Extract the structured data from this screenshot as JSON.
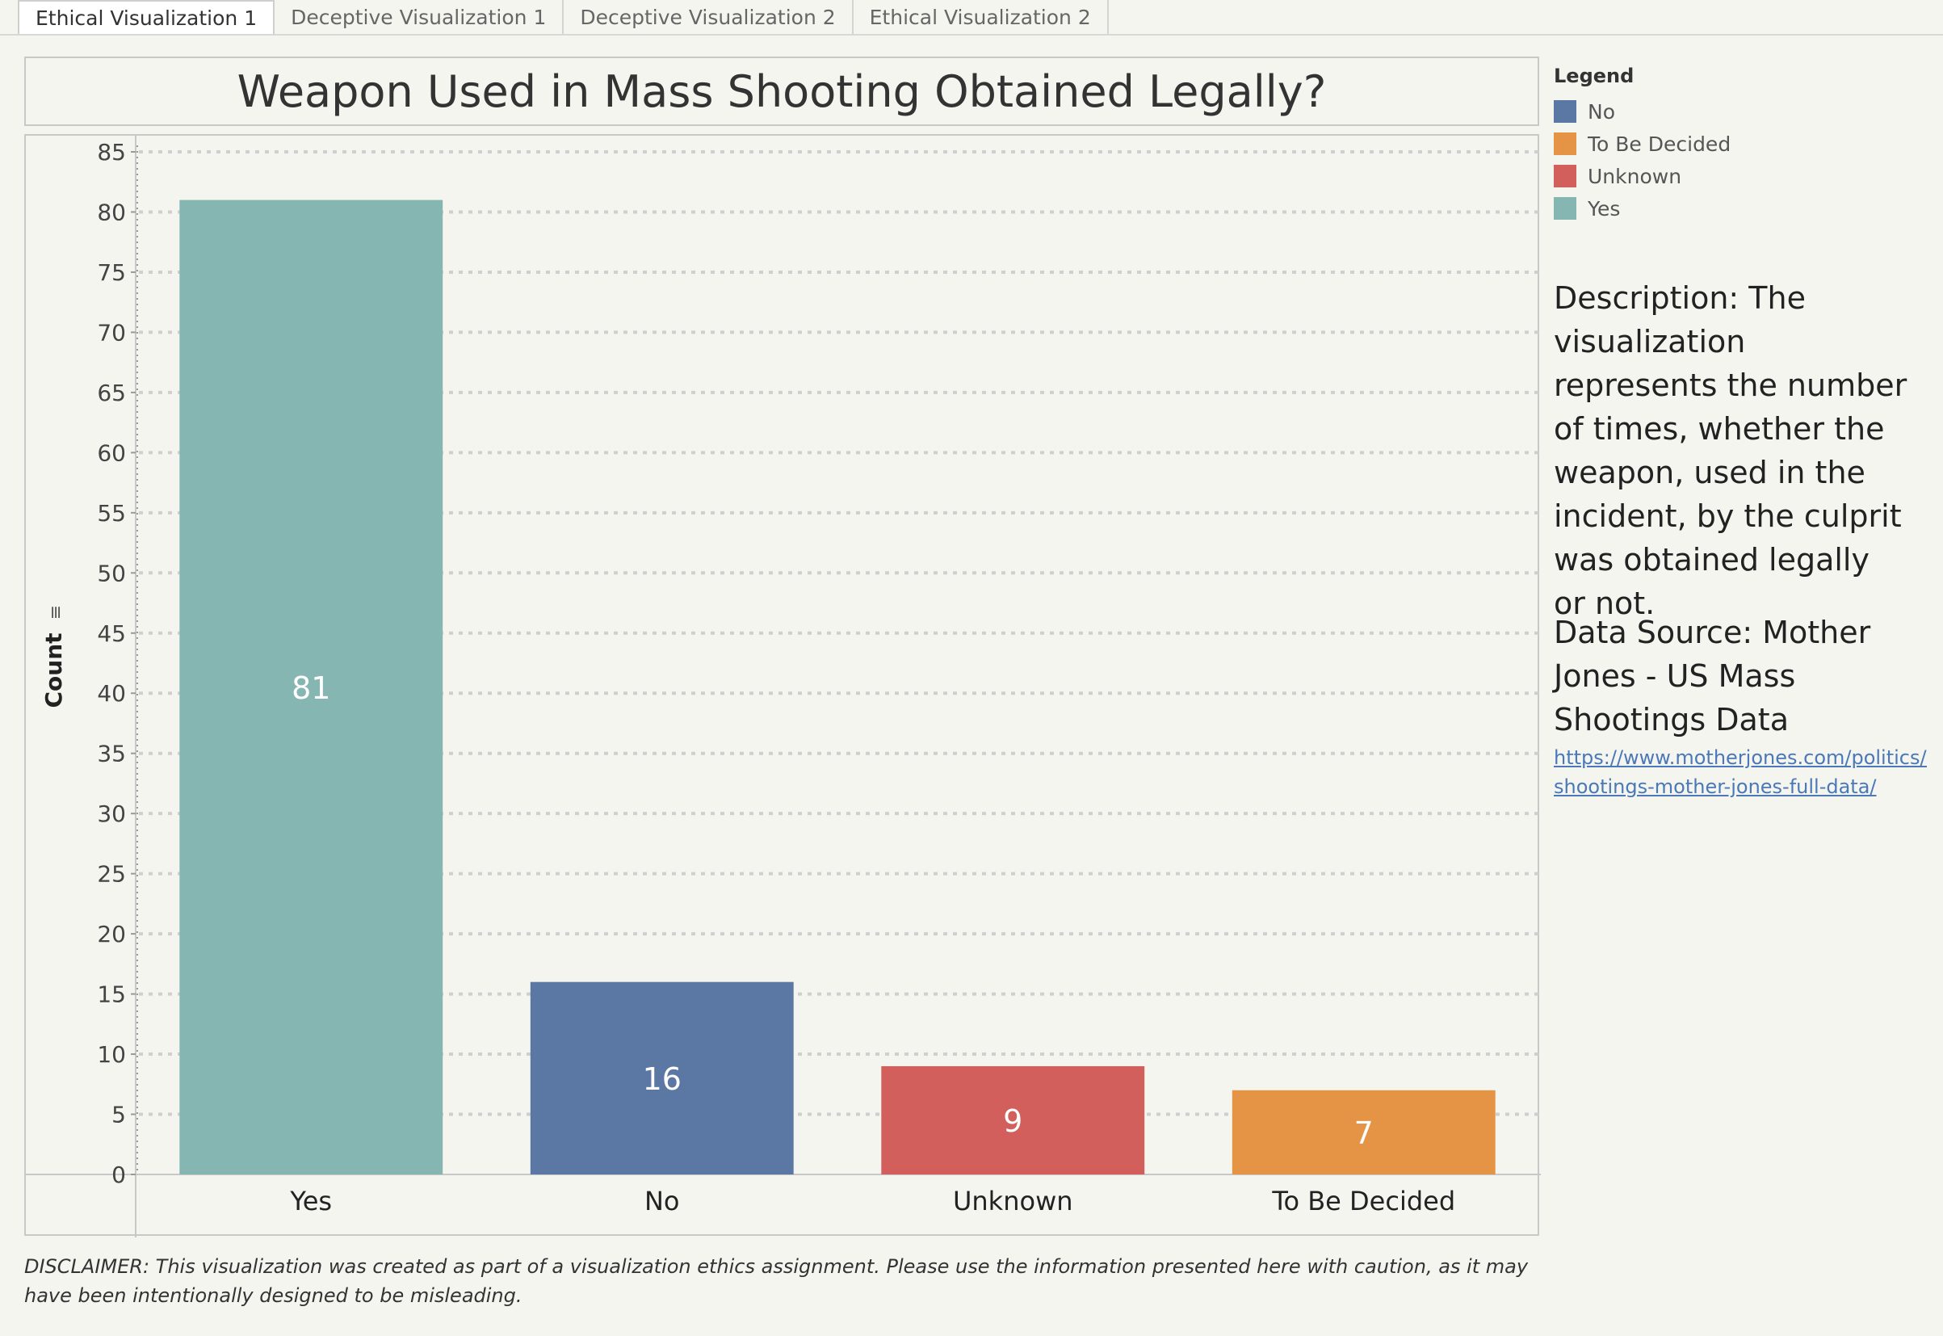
{
  "tabs": [
    {
      "label": "Ethical Visualization 1",
      "active": true
    },
    {
      "label": "Deceptive Visualization 1",
      "active": false
    },
    {
      "label": "Deceptive Visualization 2",
      "active": false
    },
    {
      "label": "Ethical Visualization 2",
      "active": false
    }
  ],
  "legend": {
    "title": "Legend",
    "items": [
      {
        "label": "No",
        "color": "#5b78a4"
      },
      {
        "label": "To Be Decided",
        "color": "#e49444"
      },
      {
        "label": "Unknown",
        "color": "#d25f5c"
      },
      {
        "label": "Yes",
        "color": "#85b6b2"
      }
    ]
  },
  "description": "Description: The visualization represents the number of times, whether the weapon, used in the incident, by the culprit was obtained legally or not.",
  "data_source": {
    "label": "Data Source: Mother Jones - US Mass Shootings Data",
    "link_line1": "https://www.motherjones.com/politics/2",
    "link_line2": "shootings-mother-jones-full-data/"
  },
  "disclaimer": "DISCLAIMER: This visualization was created as part of a visualization ethics assignment. Please use the information presented here with caution, as it may have been intentionally designed to be misleading.",
  "chart_data": {
    "type": "bar",
    "title": "Weapon Used in Mass Shooting Obtained Legally?",
    "ylabel": "Count",
    "xlabel": "",
    "categories": [
      "Yes",
      "No",
      "Unknown",
      "To Be Decided"
    ],
    "values": [
      81,
      16,
      9,
      7
    ],
    "colors": [
      "#85b6b2",
      "#5b78a4",
      "#d25f5c",
      "#e49444"
    ],
    "ylim": [
      0,
      85
    ],
    "yticks": [
      0,
      5,
      10,
      15,
      20,
      25,
      30,
      35,
      40,
      45,
      50,
      55,
      60,
      65,
      70,
      75,
      80,
      85
    ],
    "grid": true,
    "data_labels": true,
    "legend_position": "right"
  }
}
